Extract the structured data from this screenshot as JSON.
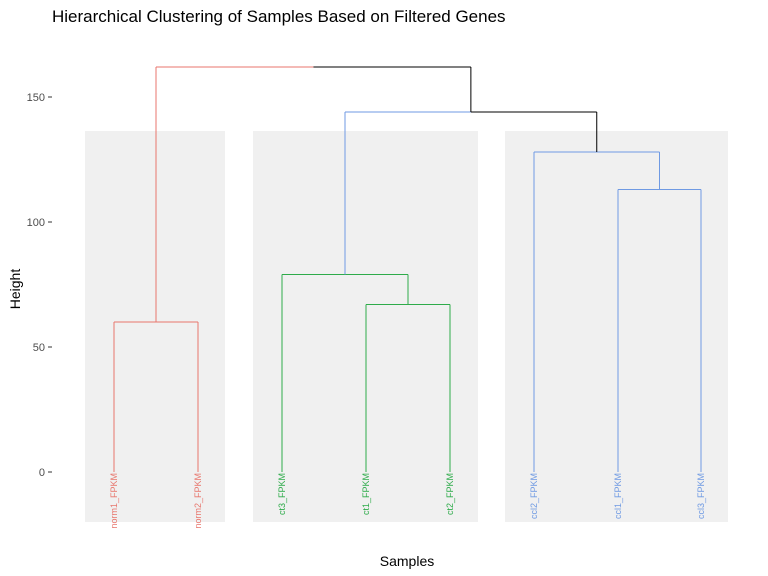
{
  "chart_data": {
    "type": "dendrogram",
    "title": "Hierarchical Clustering of Samples Based on Filtered Genes",
    "xlabel": "Samples",
    "ylabel": "Height",
    "ylim": [
      -20,
      170
    ],
    "yticks": [
      0,
      50,
      100,
      150
    ],
    "tick_labels": [
      "0",
      "50",
      "100",
      "150"
    ],
    "root_color": "#000000",
    "panel_color": "#f0f0f0",
    "clusters": [
      {
        "name": "norm",
        "color": "#e8766d",
        "leaves": [
          "norm1_FPKM",
          "norm2_FPKM"
        ],
        "merges": [
          {
            "left": "leaf:0",
            "right": "leaf:1",
            "height": 60
          }
        ]
      },
      {
        "name": "ct",
        "color": "#2eab4a",
        "leaves": [
          "ct3_FPKM",
          "ct1_FPKM",
          "ct2_FPKM"
        ],
        "merges": [
          {
            "left": "leaf:1",
            "right": "leaf:2",
            "height": 67
          },
          {
            "left": "leaf:0",
            "right": "node:0",
            "height": 79
          }
        ]
      },
      {
        "name": "ccl",
        "color": "#6f9ae3",
        "leaves": [
          "ccl2_FPKM",
          "ccl1_FPKM",
          "ccl3_FPKM"
        ],
        "merges": [
          {
            "left": "leaf:1",
            "right": "leaf:2",
            "height": 113
          },
          {
            "left": "leaf:0",
            "right": "node:0",
            "height": 128
          }
        ]
      }
    ],
    "top_merges": [
      {
        "left": "cluster:1",
        "right": "cluster:2",
        "height": 144,
        "color": "#6f9ae3"
      },
      {
        "left": "cluster:0",
        "right": "top:0",
        "height": 162,
        "color": "#e8766d"
      }
    ]
  }
}
